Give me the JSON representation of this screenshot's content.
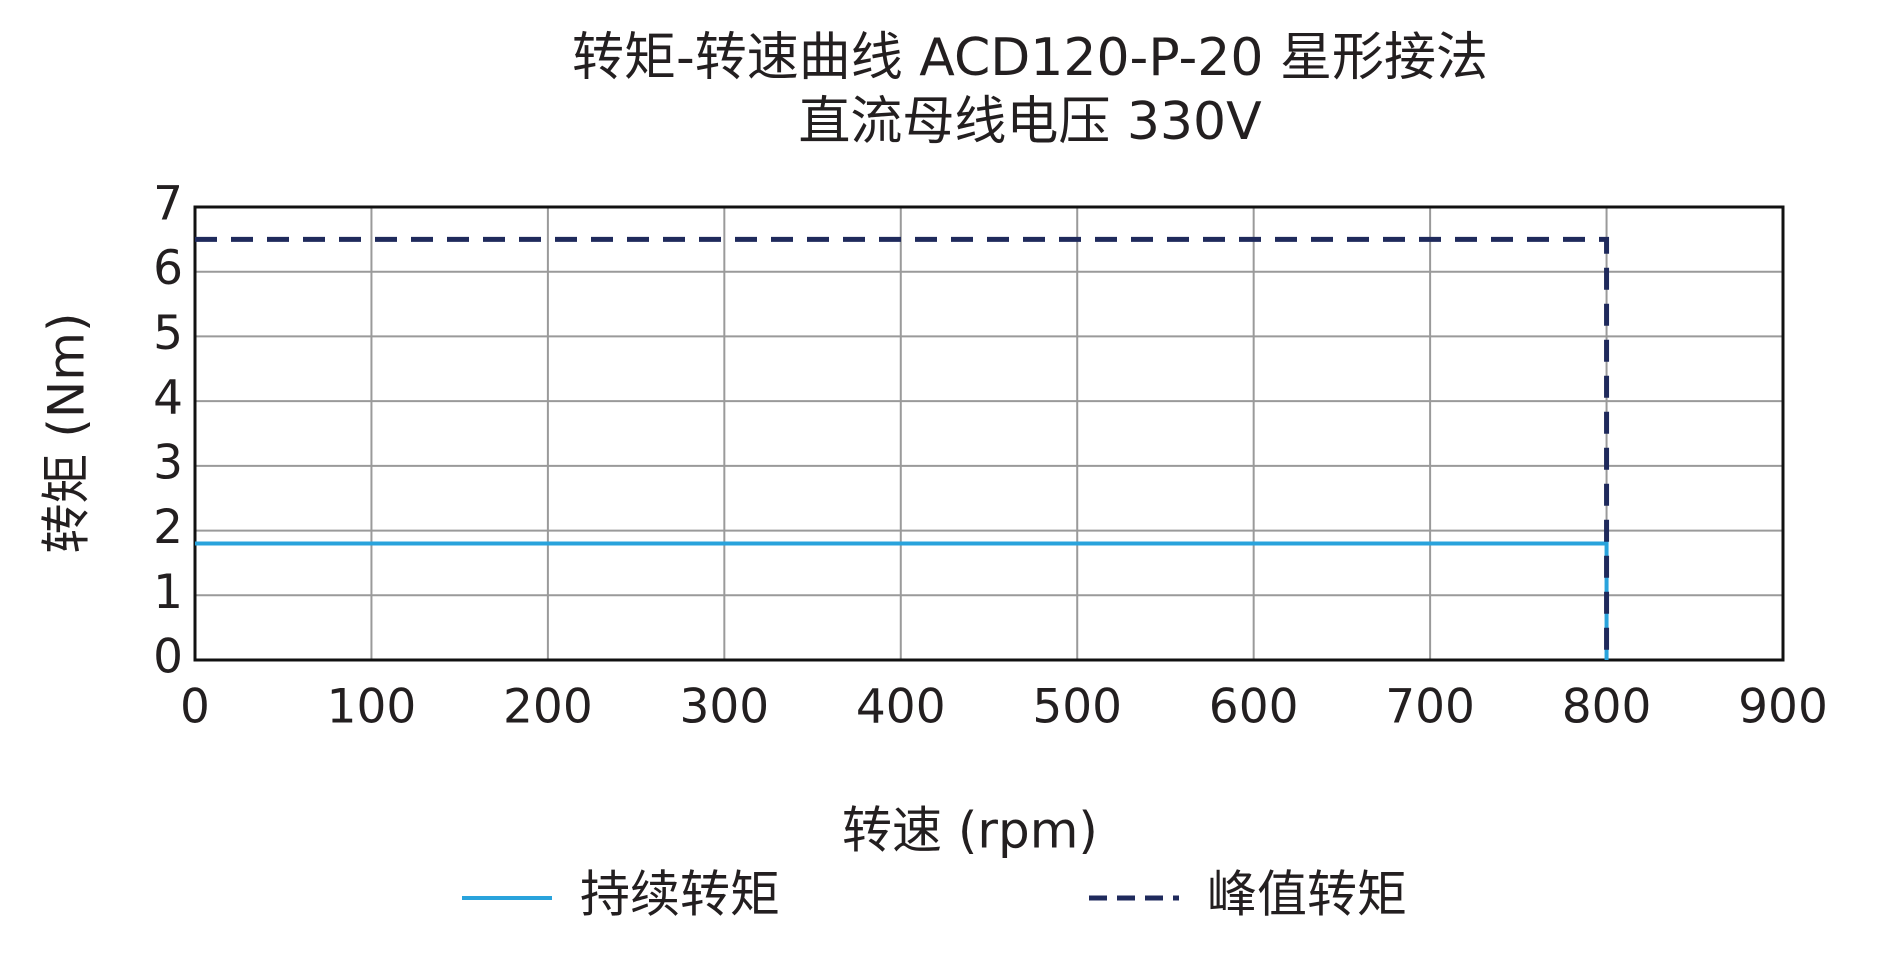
{
  "chart_data": {
    "type": "line",
    "title": "转矩-转速曲线 ACD120-P-20 星形接法",
    "subtitle": "直流母线电压 330V",
    "x_label": "转速 (rpm)",
    "y_label": "转矩 (Nm)",
    "x": [
      0,
      800,
      800
    ],
    "series": [
      {
        "name": "持续转矩",
        "color": "#29a3dc",
        "style": "solid",
        "values": [
          1.8,
          1.8,
          0
        ]
      },
      {
        "name": "峰值转矩",
        "color": "#1f2a5c",
        "style": "dashed",
        "values": [
          6.5,
          6.5,
          0
        ]
      }
    ],
    "xlim": [
      0,
      900
    ],
    "xticks": [
      0,
      100,
      200,
      300,
      400,
      500,
      600,
      700,
      800,
      900
    ],
    "ylim": [
      0,
      7
    ],
    "yticks": [
      0,
      1,
      2,
      3,
      4,
      5,
      6,
      7
    ],
    "grid": true
  }
}
